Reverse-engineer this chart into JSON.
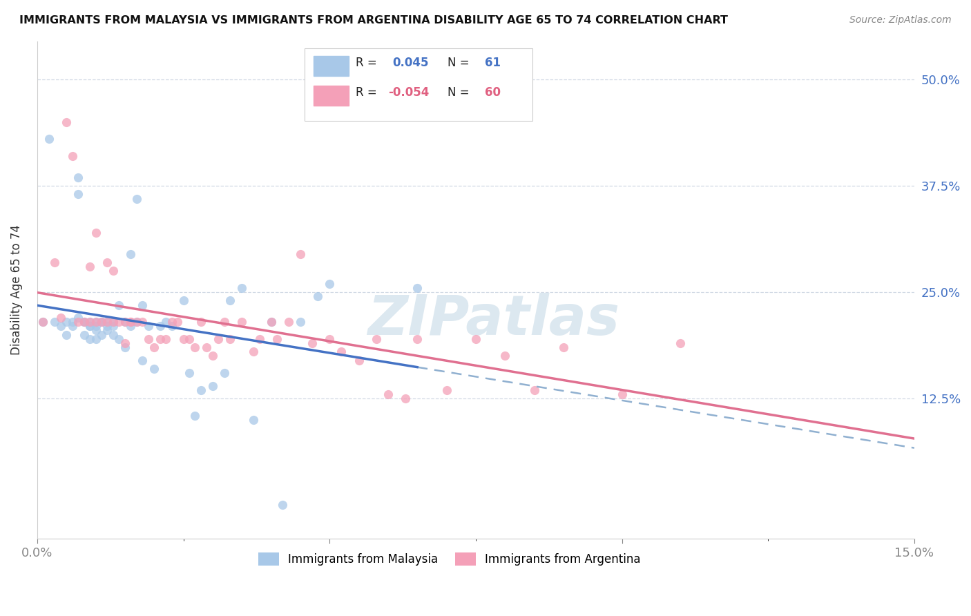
{
  "title": "IMMIGRANTS FROM MALAYSIA VS IMMIGRANTS FROM ARGENTINA DISABILITY AGE 65 TO 74 CORRELATION CHART",
  "source": "Source: ZipAtlas.com",
  "ylabel": "Disability Age 65 to 74",
  "ytick_values": [
    0.5,
    0.375,
    0.25,
    0.125
  ],
  "xlim": [
    0.0,
    0.15
  ],
  "ylim": [
    -0.04,
    0.545
  ],
  "color_malaysia": "#a8c8e8",
  "color_argentina": "#f4a0b8",
  "color_line_malaysia": "#4472c4",
  "color_line_argentina": "#e07090",
  "color_dashed": "#90b0d0",
  "R_malaysia": 0.045,
  "N_malaysia": 61,
  "R_argentina": -0.054,
  "N_argentina": 60,
  "malaysia_x": [
    0.001,
    0.002,
    0.003,
    0.004,
    0.005,
    0.005,
    0.006,
    0.006,
    0.007,
    0.007,
    0.007,
    0.008,
    0.008,
    0.008,
    0.009,
    0.009,
    0.009,
    0.009,
    0.01,
    0.01,
    0.01,
    0.01,
    0.011,
    0.011,
    0.011,
    0.012,
    0.012,
    0.012,
    0.013,
    0.013,
    0.013,
    0.014,
    0.014,
    0.015,
    0.015,
    0.016,
    0.016,
    0.017,
    0.017,
    0.018,
    0.018,
    0.019,
    0.02,
    0.021,
    0.022,
    0.023,
    0.025,
    0.026,
    0.027,
    0.028,
    0.03,
    0.032,
    0.033,
    0.035,
    0.037,
    0.04,
    0.042,
    0.045,
    0.048,
    0.05,
    0.065
  ],
  "malaysia_y": [
    0.215,
    0.43,
    0.215,
    0.21,
    0.215,
    0.2,
    0.21,
    0.215,
    0.385,
    0.365,
    0.22,
    0.215,
    0.2,
    0.215,
    0.215,
    0.21,
    0.195,
    0.21,
    0.215,
    0.21,
    0.205,
    0.195,
    0.215,
    0.2,
    0.215,
    0.215,
    0.21,
    0.205,
    0.215,
    0.21,
    0.2,
    0.235,
    0.195,
    0.215,
    0.185,
    0.21,
    0.295,
    0.36,
    0.215,
    0.235,
    0.17,
    0.21,
    0.16,
    0.21,
    0.215,
    0.21,
    0.24,
    0.155,
    0.105,
    0.135,
    0.14,
    0.155,
    0.24,
    0.255,
    0.1,
    0.215,
    0.0,
    0.215,
    0.245,
    0.26,
    0.255
  ],
  "argentina_x": [
    0.001,
    0.003,
    0.004,
    0.005,
    0.006,
    0.007,
    0.008,
    0.009,
    0.009,
    0.01,
    0.01,
    0.011,
    0.012,
    0.012,
    0.013,
    0.013,
    0.014,
    0.015,
    0.015,
    0.016,
    0.016,
    0.017,
    0.018,
    0.019,
    0.02,
    0.021,
    0.022,
    0.023,
    0.024,
    0.025,
    0.026,
    0.027,
    0.028,
    0.029,
    0.03,
    0.031,
    0.032,
    0.033,
    0.035,
    0.037,
    0.038,
    0.04,
    0.041,
    0.043,
    0.045,
    0.047,
    0.05,
    0.052,
    0.055,
    0.058,
    0.06,
    0.063,
    0.065,
    0.07,
    0.075,
    0.08,
    0.085,
    0.09,
    0.1,
    0.11
  ],
  "argentina_y": [
    0.215,
    0.285,
    0.22,
    0.45,
    0.41,
    0.215,
    0.215,
    0.215,
    0.28,
    0.215,
    0.32,
    0.215,
    0.285,
    0.215,
    0.275,
    0.215,
    0.215,
    0.215,
    0.19,
    0.215,
    0.215,
    0.215,
    0.215,
    0.195,
    0.185,
    0.195,
    0.195,
    0.215,
    0.215,
    0.195,
    0.195,
    0.185,
    0.215,
    0.185,
    0.175,
    0.195,
    0.215,
    0.195,
    0.215,
    0.18,
    0.195,
    0.215,
    0.195,
    0.215,
    0.295,
    0.19,
    0.195,
    0.18,
    0.17,
    0.195,
    0.13,
    0.125,
    0.195,
    0.135,
    0.195,
    0.175,
    0.135,
    0.185,
    0.13,
    0.19
  ],
  "background_color": "#ffffff",
  "grid_color": "#d0d8e4",
  "watermark_color": "#dce8f0"
}
